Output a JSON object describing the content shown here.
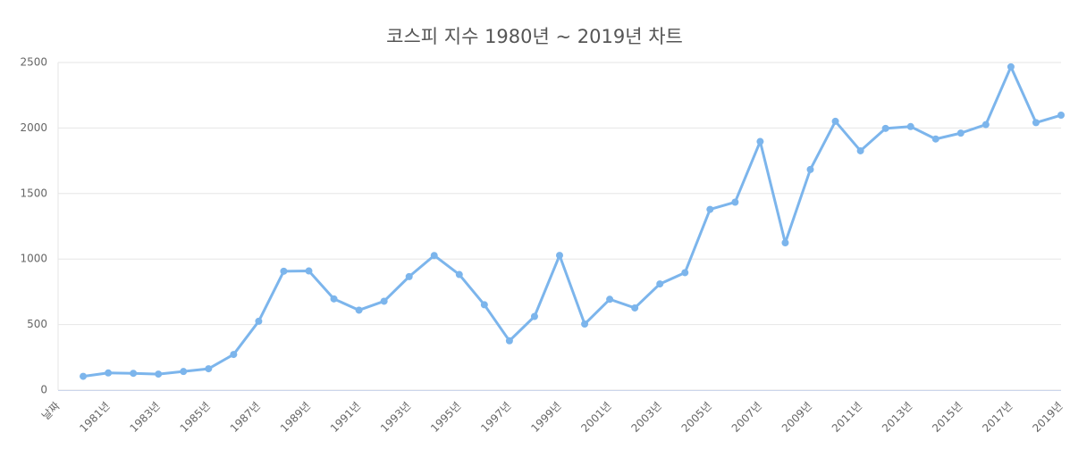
{
  "chart_data": {
    "type": "line",
    "title": "코스피 지수 1980년 ~ 2019년 차트",
    "categories": [
      "날짜",
      null,
      "1981년",
      null,
      "1983년",
      null,
      "1985년",
      null,
      "1987년",
      null,
      "1989년",
      null,
      "1991년",
      null,
      "1993년",
      null,
      "1995년",
      null,
      "1997년",
      null,
      "1999년",
      null,
      "2001년",
      null,
      "2003년",
      null,
      "2005년",
      null,
      "2007년",
      null,
      "2009년",
      null,
      "2011년",
      null,
      "2013년",
      null,
      "2015년",
      null,
      "2017년",
      null,
      "2019년"
    ],
    "series": [
      {
        "color": "#7cb5ec",
        "values": [
          null,
          105,
          131,
          128,
          122,
          142,
          163,
          272,
          525,
          907,
          909,
          696,
          610,
          678,
          866,
          1027,
          882,
          651,
          376,
          562,
          1028,
          504,
          693,
          627,
          810,
          896,
          1379,
          1434,
          1897,
          1124,
          1683,
          2051,
          1826,
          1997,
          2011,
          1916,
          1961,
          2026,
          2467,
          2041,
          2098
        ]
      }
    ],
    "ylim": [
      0,
      2500
    ],
    "yticks": [
      0,
      500,
      1000,
      1500,
      2000,
      2500
    ],
    "grid": true
  }
}
